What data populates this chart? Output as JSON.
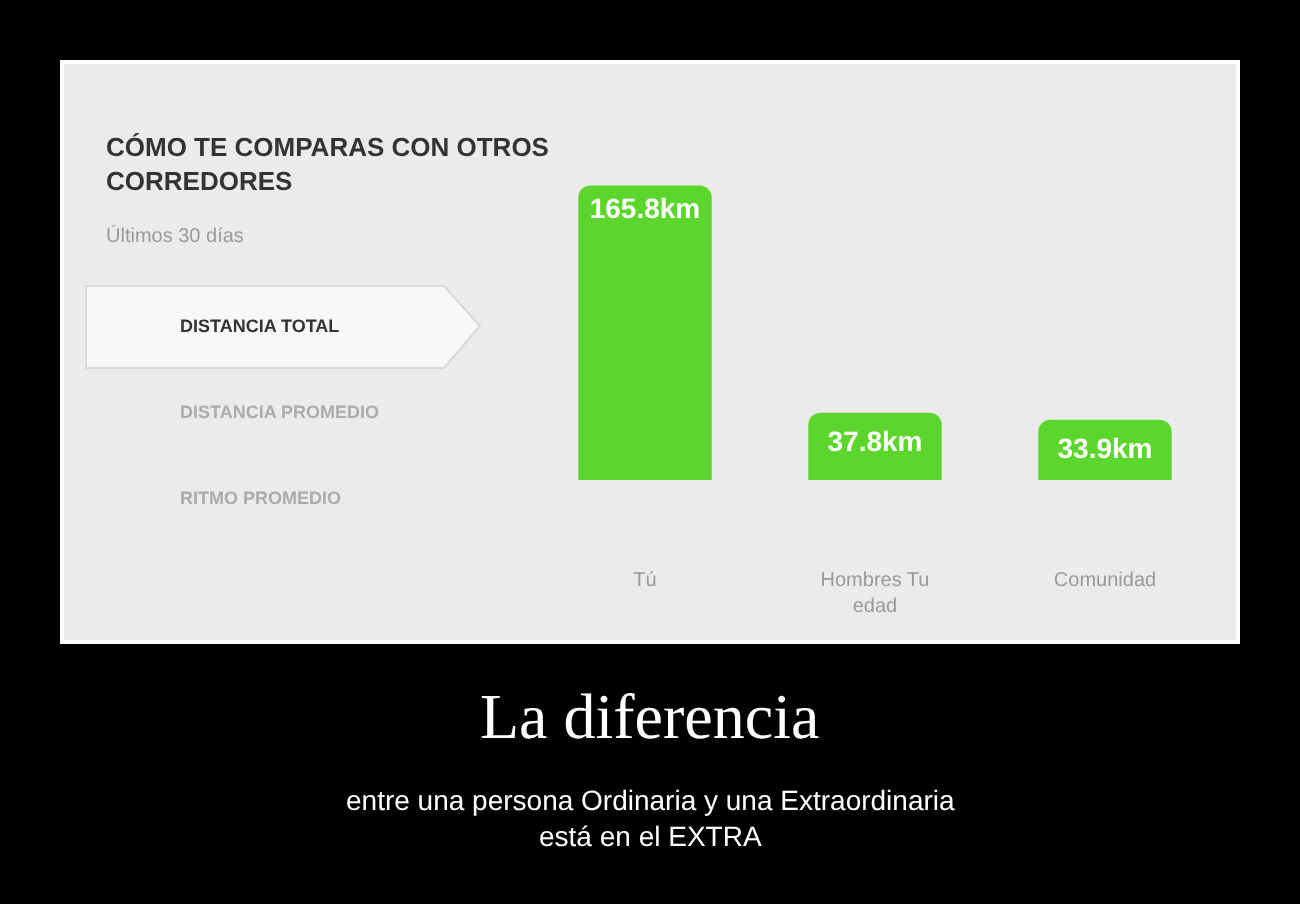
{
  "chart_data": {
    "type": "bar",
    "title": "CÓMO TE COMPARAS CON OTROS CORREDORES",
    "subtitle": "Últimos 30 días",
    "categories": [
      "Tú",
      "Hombres Tu edad",
      "Comunidad"
    ],
    "values": [
      165.8,
      37.8,
      33.9
    ],
    "color": "#5cd62c",
    "value_labels": [
      "165.8km",
      "37.8km",
      "33.9km"
    ],
    "annotations": [
      "DISTANCIA TOTAL",
      "DISTANCIA PROMEDIO",
      "RITMO PROMEDIO",
      "La diferencia",
      "entre una persona Ordinaria y una Extraordinaria está en el EXTRA"
    ]
  }
}
